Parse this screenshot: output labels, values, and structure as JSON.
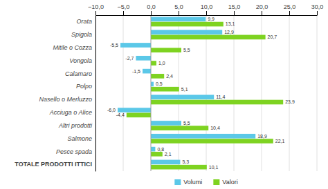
{
  "chart_data": {
    "type": "bar",
    "orientation": "horizontal",
    "categories": [
      "Orata",
      "Spigola",
      "Mitile o Cozza",
      "Vongola",
      "Calamaro",
      "Polpo",
      "Nasello o Merluzzo",
      "Acciuga o Alice",
      "Altri prodotti",
      "Salmone",
      "Pesce spada",
      "TOTALE PRODOTTI ITTICI"
    ],
    "series": [
      {
        "name": "Volumi",
        "color": "#5bc8e8",
        "values": [
          9.9,
          12.9,
          -5.5,
          -2.7,
          -1.5,
          0.5,
          11.4,
          -6.0,
          5.5,
          18.9,
          0.8,
          5.3
        ],
        "value_labels": [
          "9,9",
          "12,9",
          "-5,5",
          "-2,7",
          "-1,5",
          "0,5",
          "11,4",
          "-6,0",
          "5,5",
          "18,9",
          "0,8",
          "5,3"
        ]
      },
      {
        "name": "Valori",
        "color": "#7ed321",
        "values": [
          13.1,
          20.7,
          5.5,
          1.0,
          2.4,
          5.1,
          23.9,
          -4.4,
          10.4,
          22.1,
          2.1,
          10.1
        ],
        "value_labels": [
          "13,1",
          "20,7",
          "5,5",
          "1,0",
          "2,4",
          "5,1",
          "23,9",
          "-4,4",
          "10,4",
          "22,1",
          "2,1",
          "10,1"
        ]
      }
    ],
    "xlim": [
      -10,
      30
    ],
    "xticks": [
      {
        "value": -10,
        "label": "−10,0"
      },
      {
        "value": -5,
        "label": "−5,0"
      },
      {
        "value": 0,
        "label": "0,0"
      },
      {
        "value": 5,
        "label": "5,0"
      },
      {
        "value": 10,
        "label": "10,0"
      },
      {
        "value": 15,
        "label": "15,0"
      },
      {
        "value": 20,
        "label": "20,0"
      },
      {
        "value": 25,
        "label": "25,0"
      },
      {
        "value": 30,
        "label": "30,0"
      }
    ],
    "grid": true,
    "data_labels": true,
    "legend": "bottom"
  }
}
